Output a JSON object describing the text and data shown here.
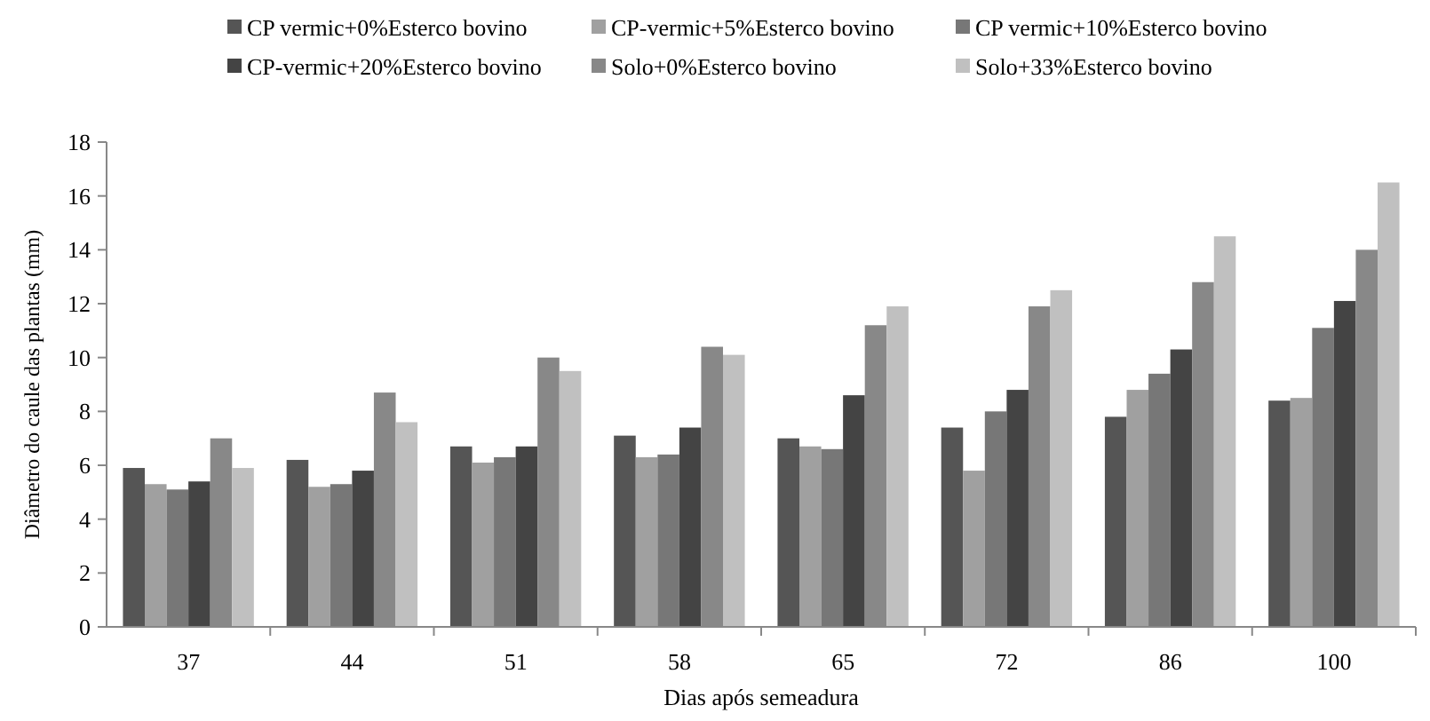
{
  "chart_data": {
    "type": "bar",
    "xlabel": "Dias após semeadura",
    "ylabel": "Diâmetro do caule das plantas (mm)",
    "categories": [
      "37",
      "44",
      "51",
      "58",
      "65",
      "72",
      "86",
      "100"
    ],
    "series": [
      {
        "name": "CP vermic+0%Esterco bovino",
        "color": "#555555",
        "values": [
          5.9,
          6.2,
          6.7,
          7.1,
          7.0,
          7.4,
          7.8,
          8.4
        ]
      },
      {
        "name": "CP-vermic+5%Esterco bovino",
        "color": "#a0a0a0",
        "values": [
          5.3,
          5.2,
          6.1,
          6.3,
          6.7,
          5.8,
          8.8,
          8.5
        ]
      },
      {
        "name": "CP vermic+10%Esterco bovino",
        "color": "#777777",
        "values": [
          5.1,
          5.3,
          6.3,
          6.4,
          6.6,
          8.0,
          9.4,
          11.1
        ]
      },
      {
        "name": "CP-vermic+20%Esterco bovino",
        "color": "#444444",
        "values": [
          5.4,
          5.8,
          6.7,
          7.4,
          8.6,
          8.8,
          10.3,
          12.1
        ]
      },
      {
        "name": "Solo+0%Esterco bovino",
        "color": "#888888",
        "values": [
          7.0,
          8.7,
          10.0,
          10.4,
          11.2,
          11.9,
          12.8,
          14.0
        ]
      },
      {
        "name": "Solo+33%Esterco bovino",
        "color": "#c0c0c0",
        "values": [
          5.9,
          7.6,
          9.5,
          10.1,
          11.9,
          12.5,
          14.5,
          16.5
        ]
      }
    ],
    "ylim": [
      0,
      18
    ],
    "yticks": [
      0,
      2,
      4,
      6,
      8,
      10,
      12,
      14,
      16,
      18
    ],
    "grid": false,
    "legend": "top"
  }
}
